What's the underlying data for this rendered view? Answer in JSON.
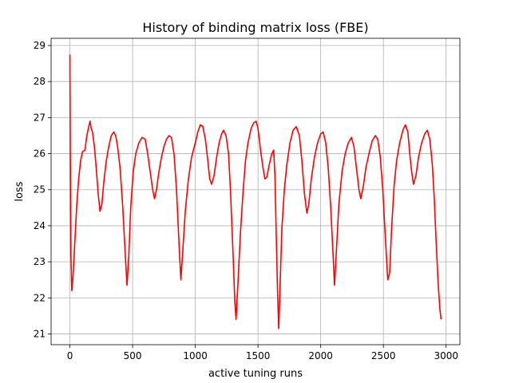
{
  "chart_data": {
    "type": "line",
    "title": "History of binding matrix loss (FBE)",
    "xlabel": "active tuning runs",
    "ylabel": "loss",
    "xlim": [
      -150,
      3110
    ],
    "ylim": [
      20.7,
      29.2
    ],
    "xticks": [
      0,
      500,
      1000,
      1500,
      2000,
      2500,
      3000
    ],
    "yticks": [
      21,
      22,
      23,
      24,
      25,
      26,
      27,
      28,
      29
    ],
    "grid": true,
    "series": [
      {
        "color": "#ff0000",
        "points": [
          [
            0,
            28.75
          ],
          [
            3,
            26.0
          ],
          [
            8,
            23.2
          ],
          [
            15,
            22.2
          ],
          [
            25,
            22.6
          ],
          [
            40,
            23.6
          ],
          [
            55,
            24.6
          ],
          [
            70,
            25.3
          ],
          [
            85,
            25.8
          ],
          [
            100,
            26.05
          ],
          [
            120,
            26.1
          ],
          [
            135,
            26.5
          ],
          [
            150,
            26.75
          ],
          [
            160,
            26.9
          ],
          [
            170,
            26.7
          ],
          [
            180,
            26.6
          ],
          [
            195,
            26.2
          ],
          [
            210,
            25.6
          ],
          [
            225,
            24.9
          ],
          [
            240,
            24.4
          ],
          [
            255,
            24.6
          ],
          [
            270,
            25.2
          ],
          [
            290,
            25.8
          ],
          [
            310,
            26.2
          ],
          [
            330,
            26.5
          ],
          [
            350,
            26.6
          ],
          [
            365,
            26.5
          ],
          [
            380,
            26.2
          ],
          [
            400,
            25.6
          ],
          [
            420,
            24.6
          ],
          [
            440,
            23.3
          ],
          [
            455,
            22.35
          ],
          [
            470,
            23.2
          ],
          [
            485,
            24.5
          ],
          [
            505,
            25.5
          ],
          [
            525,
            26.0
          ],
          [
            550,
            26.3
          ],
          [
            575,
            26.45
          ],
          [
            600,
            26.4
          ],
          [
            620,
            26.0
          ],
          [
            640,
            25.5
          ],
          [
            660,
            25.0
          ],
          [
            675,
            24.75
          ],
          [
            690,
            25.0
          ],
          [
            710,
            25.5
          ],
          [
            730,
            25.9
          ],
          [
            750,
            26.2
          ],
          [
            770,
            26.4
          ],
          [
            790,
            26.5
          ],
          [
            810,
            26.45
          ],
          [
            830,
            26.0
          ],
          [
            850,
            25.0
          ],
          [
            870,
            23.5
          ],
          [
            885,
            22.5
          ],
          [
            900,
            23.3
          ],
          [
            920,
            24.4
          ],
          [
            945,
            25.3
          ],
          [
            970,
            25.9
          ],
          [
            1000,
            26.3
          ],
          [
            1020,
            26.6
          ],
          [
            1040,
            26.8
          ],
          [
            1060,
            26.75
          ],
          [
            1080,
            26.4
          ],
          [
            1100,
            25.8
          ],
          [
            1115,
            25.3
          ],
          [
            1130,
            25.15
          ],
          [
            1150,
            25.4
          ],
          [
            1170,
            25.9
          ],
          [
            1190,
            26.3
          ],
          [
            1210,
            26.55
          ],
          [
            1225,
            26.65
          ],
          [
            1245,
            26.5
          ],
          [
            1265,
            26.0
          ],
          [
            1280,
            25.0
          ],
          [
            1300,
            23.3
          ],
          [
            1315,
            21.9
          ],
          [
            1325,
            21.4
          ],
          [
            1340,
            22.4
          ],
          [
            1360,
            23.8
          ],
          [
            1380,
            24.9
          ],
          [
            1400,
            25.8
          ],
          [
            1420,
            26.3
          ],
          [
            1445,
            26.7
          ],
          [
            1465,
            26.85
          ],
          [
            1485,
            26.9
          ],
          [
            1500,
            26.7
          ],
          [
            1520,
            26.1
          ],
          [
            1540,
            25.6
          ],
          [
            1555,
            25.3
          ],
          [
            1570,
            25.35
          ],
          [
            1590,
            25.7
          ],
          [
            1610,
            26.0
          ],
          [
            1625,
            26.1
          ],
          [
            1635,
            25.4
          ],
          [
            1645,
            23.8
          ],
          [
            1655,
            22.3
          ],
          [
            1665,
            21.15
          ],
          [
            1675,
            22.2
          ],
          [
            1690,
            23.9
          ],
          [
            1710,
            25.0
          ],
          [
            1730,
            25.7
          ],
          [
            1755,
            26.3
          ],
          [
            1780,
            26.65
          ],
          [
            1805,
            26.75
          ],
          [
            1830,
            26.5
          ],
          [
            1850,
            25.8
          ],
          [
            1870,
            24.9
          ],
          [
            1890,
            24.35
          ],
          [
            1905,
            24.6
          ],
          [
            1925,
            25.3
          ],
          [
            1950,
            25.9
          ],
          [
            1975,
            26.3
          ],
          [
            2000,
            26.55
          ],
          [
            2020,
            26.6
          ],
          [
            2040,
            26.3
          ],
          [
            2060,
            25.6
          ],
          [
            2080,
            24.5
          ],
          [
            2100,
            23.1
          ],
          [
            2110,
            22.35
          ],
          [
            2125,
            23.3
          ],
          [
            2145,
            24.6
          ],
          [
            2170,
            25.5
          ],
          [
            2195,
            26.0
          ],
          [
            2220,
            26.3
          ],
          [
            2245,
            26.45
          ],
          [
            2265,
            26.2
          ],
          [
            2285,
            25.6
          ],
          [
            2305,
            25.0
          ],
          [
            2320,
            24.75
          ],
          [
            2340,
            25.1
          ],
          [
            2360,
            25.6
          ],
          [
            2385,
            26.0
          ],
          [
            2410,
            26.35
          ],
          [
            2435,
            26.5
          ],
          [
            2455,
            26.4
          ],
          [
            2475,
            25.9
          ],
          [
            2495,
            25.0
          ],
          [
            2515,
            23.7
          ],
          [
            2535,
            22.5
          ],
          [
            2550,
            22.7
          ],
          [
            2565,
            23.9
          ],
          [
            2585,
            25.1
          ],
          [
            2605,
            25.8
          ],
          [
            2630,
            26.3
          ],
          [
            2655,
            26.65
          ],
          [
            2675,
            26.8
          ],
          [
            2695,
            26.6
          ],
          [
            2710,
            26.0
          ],
          [
            2725,
            25.5
          ],
          [
            2740,
            25.15
          ],
          [
            2760,
            25.4
          ],
          [
            2780,
            25.9
          ],
          [
            2805,
            26.3
          ],
          [
            2830,
            26.55
          ],
          [
            2850,
            26.65
          ],
          [
            2870,
            26.4
          ],
          [
            2890,
            25.7
          ],
          [
            2905,
            24.8
          ],
          [
            2920,
            23.6
          ],
          [
            2935,
            22.5
          ],
          [
            2950,
            21.7
          ],
          [
            2960,
            21.4
          ]
        ]
      }
    ]
  }
}
